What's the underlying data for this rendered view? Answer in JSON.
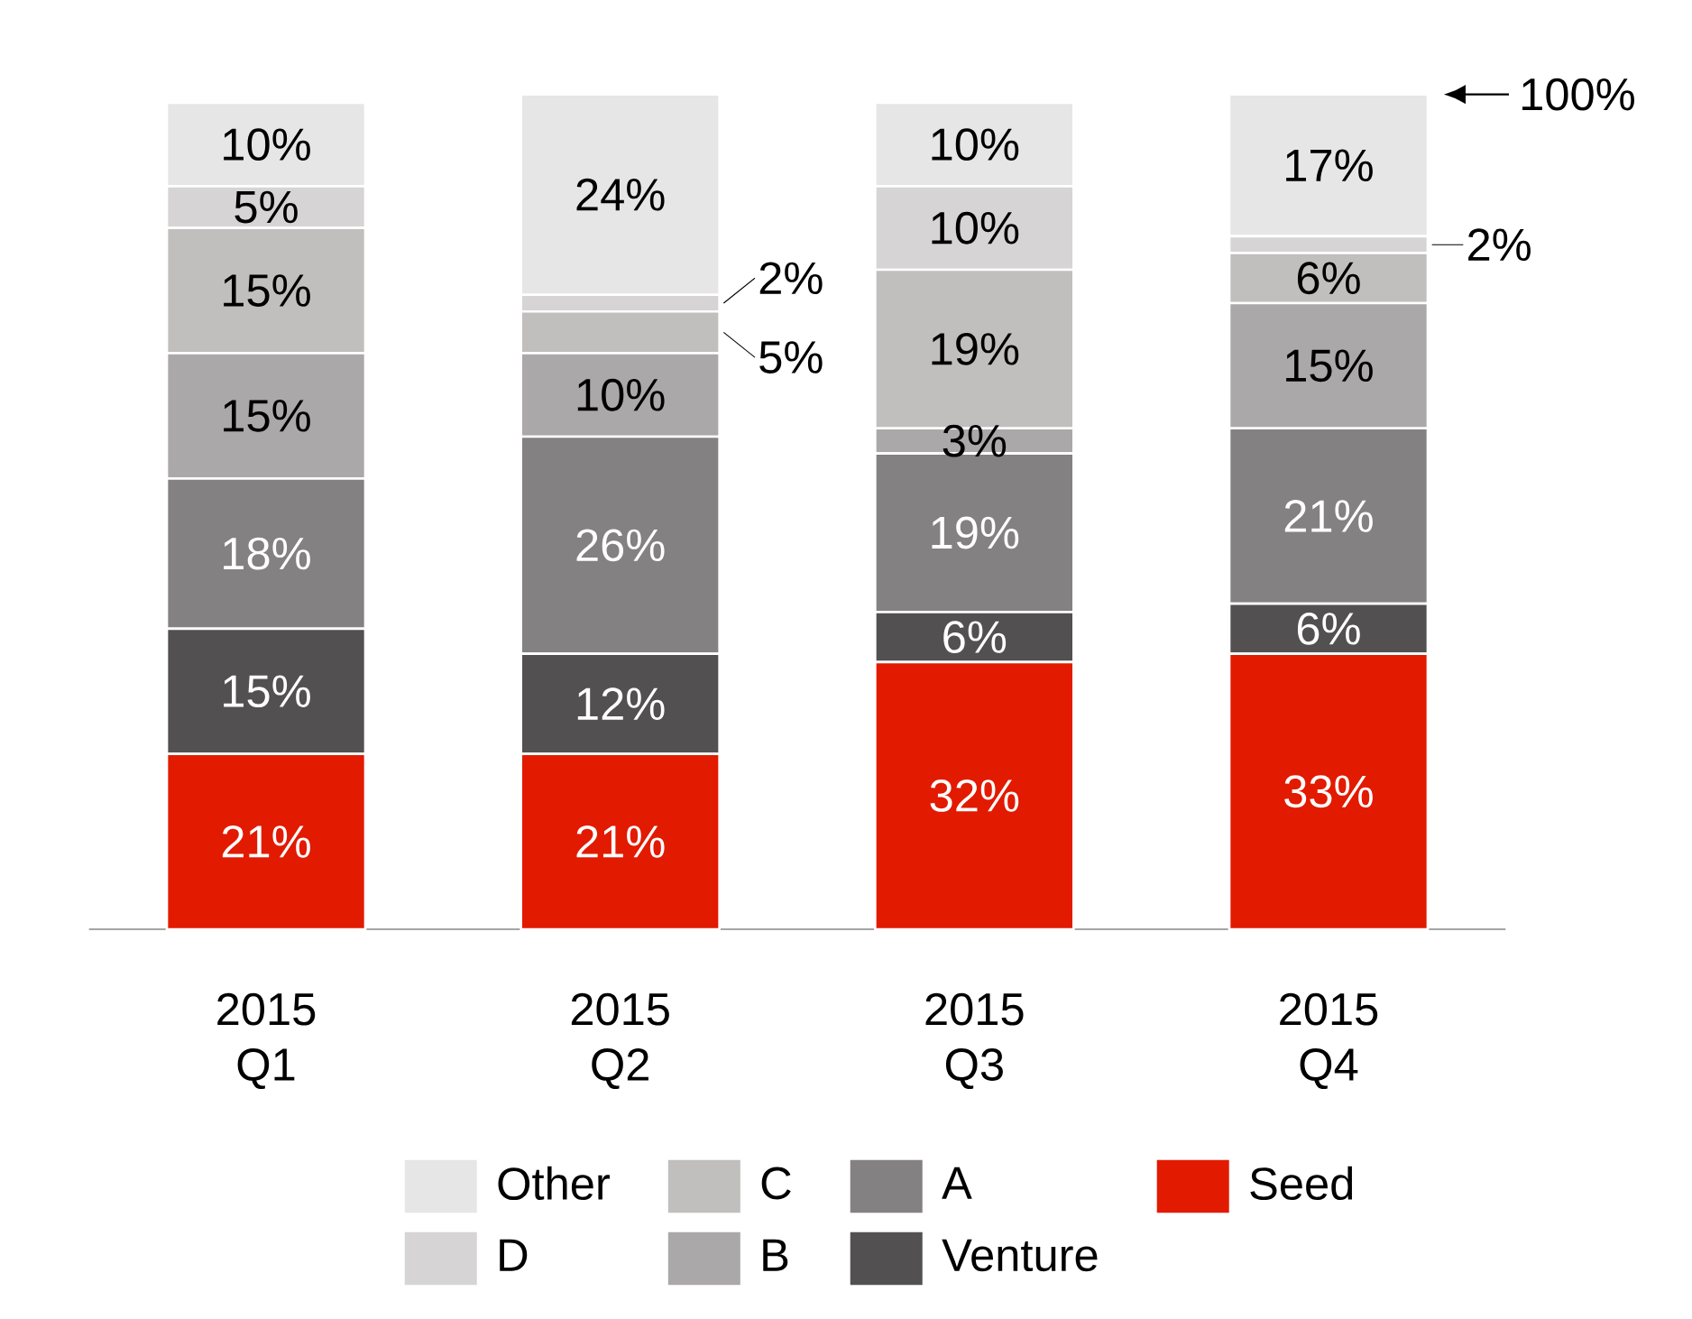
{
  "chart_data": {
    "type": "bar",
    "stacked": true,
    "categories": [
      "2015 Q1",
      "2015 Q2",
      "2015 Q3",
      "2015 Q4"
    ],
    "series": [
      {
        "name": "Seed",
        "color": "#e21a00",
        "values": [
          21,
          21,
          32,
          33
        ],
        "value_labels": [
          "21%",
          "21%",
          "32%",
          "33%"
        ]
      },
      {
        "name": "Venture",
        "color": "#525051",
        "values": [
          15,
          12,
          6,
          6
        ],
        "value_labels": [
          "15%",
          "12%",
          "6%",
          "6%"
        ]
      },
      {
        "name": "A",
        "color": "#838182",
        "values": [
          18,
          26,
          19,
          21
        ],
        "value_labels": [
          "18%",
          "26%",
          "19%",
          "21%"
        ]
      },
      {
        "name": "B",
        "color": "#aaa8a9",
        "values": [
          15,
          10,
          3,
          15
        ],
        "value_labels": [
          "15%",
          "10%",
          "3%",
          "15%"
        ]
      },
      {
        "name": "C",
        "color": "#c0bfbd",
        "values": [
          15,
          5,
          19,
          6
        ],
        "value_labels": [
          "15%",
          "5%",
          "19%",
          "6%"
        ]
      },
      {
        "name": "D",
        "color": "#d6d4d5",
        "values": [
          5,
          2,
          10,
          2
        ],
        "value_labels": [
          "5%",
          "2%",
          "10%",
          "2%"
        ]
      },
      {
        "name": "Other",
        "color": "#e6e6e6",
        "values": [
          10,
          24,
          10,
          17
        ],
        "value_labels": [
          "10%",
          "24%",
          "10%",
          "17%"
        ]
      }
    ],
    "annotations": [
      "100%"
    ],
    "legend": "bottom"
  }
}
